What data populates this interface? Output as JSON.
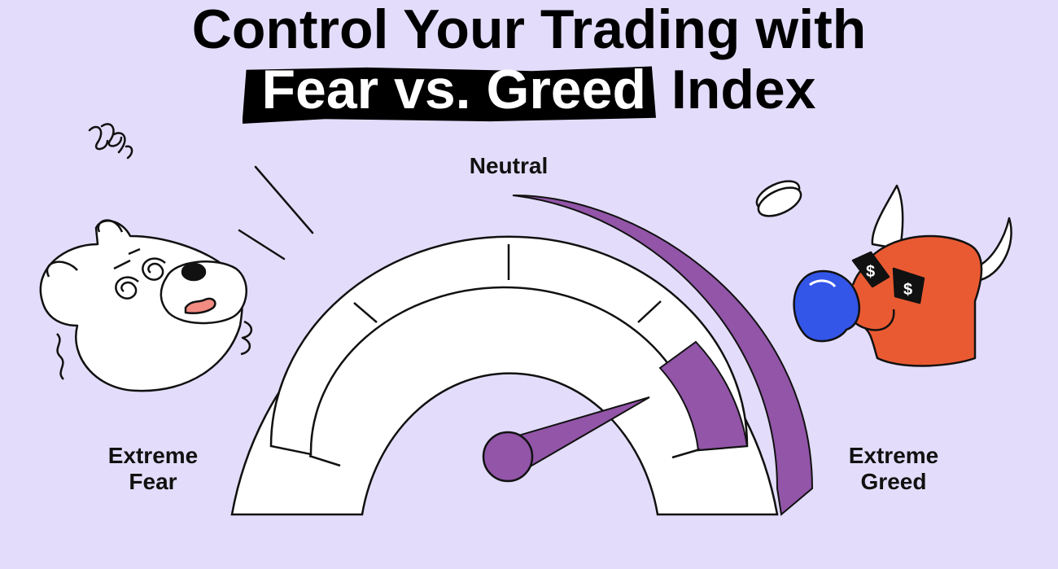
{
  "title": {
    "line1": "Control Your Trading with",
    "highlight": "Fear vs. Greed",
    "rest": "Index"
  },
  "gauge": {
    "label_top": "Neutral",
    "label_left": "Extreme Fear",
    "label_right": "Extreme Greed",
    "needle_value_fraction": 0.78,
    "accent_color": "#9255a8"
  },
  "colors": {
    "background": "#e3ddfb",
    "bull": "#ea5a32",
    "bubble": "#3355e8",
    "bear": "#ffffff"
  },
  "illustrations": {
    "bear": "scared-bear-icon",
    "bull": "greedy-bull-icon",
    "coin": "coin-icon",
    "dollar_sign": "$"
  }
}
